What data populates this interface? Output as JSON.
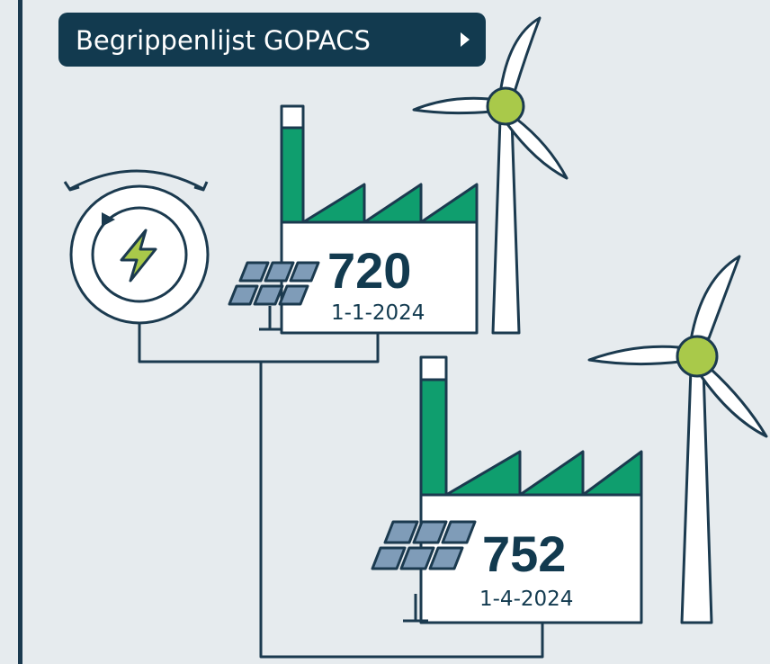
{
  "button": {
    "label": "Begrippenlijst GOPACS"
  },
  "factories": [
    {
      "number": 720,
      "date": "1-1-2024"
    },
    {
      "number": 752,
      "date": "1-4-2024"
    }
  ]
}
